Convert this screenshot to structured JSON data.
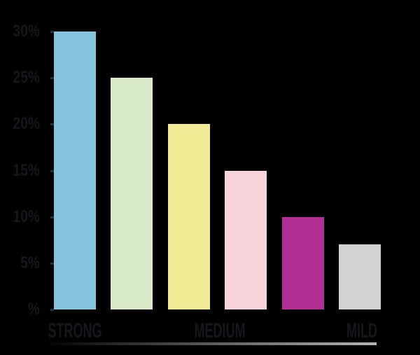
{
  "colors": {
    "background": "#000000",
    "label_text": "#16161f",
    "tick_mark": "#2a2f38",
    "baseline_gradient_start": "#000000",
    "baseline_gradient_end": "#b5b5b5"
  },
  "chart_data": {
    "type": "bar",
    "title": "",
    "xlabel": "",
    "ylabel": "",
    "ylim": [
      0,
      30
    ],
    "grid": false,
    "legend": false,
    "values": [
      30,
      25,
      20,
      15,
      10,
      7
    ],
    "bar_colors": [
      "#85c3de",
      "#d8eac5",
      "#f2eb95",
      "#f7d4da",
      "#b12f95",
      "#d2d2d4"
    ],
    "y_ticks": [
      30,
      25,
      20,
      15,
      10,
      5,
      0
    ],
    "y_tick_labels": [
      "30%",
      "25%",
      "20%",
      "15%",
      "10%",
      "5%",
      "%"
    ],
    "x_axis_labels": [
      {
        "label": "STRONG",
        "anchor": "left"
      },
      {
        "label": "MEDIUM",
        "anchor": "center"
      },
      {
        "label": "MILD",
        "anchor": "right"
      }
    ]
  }
}
